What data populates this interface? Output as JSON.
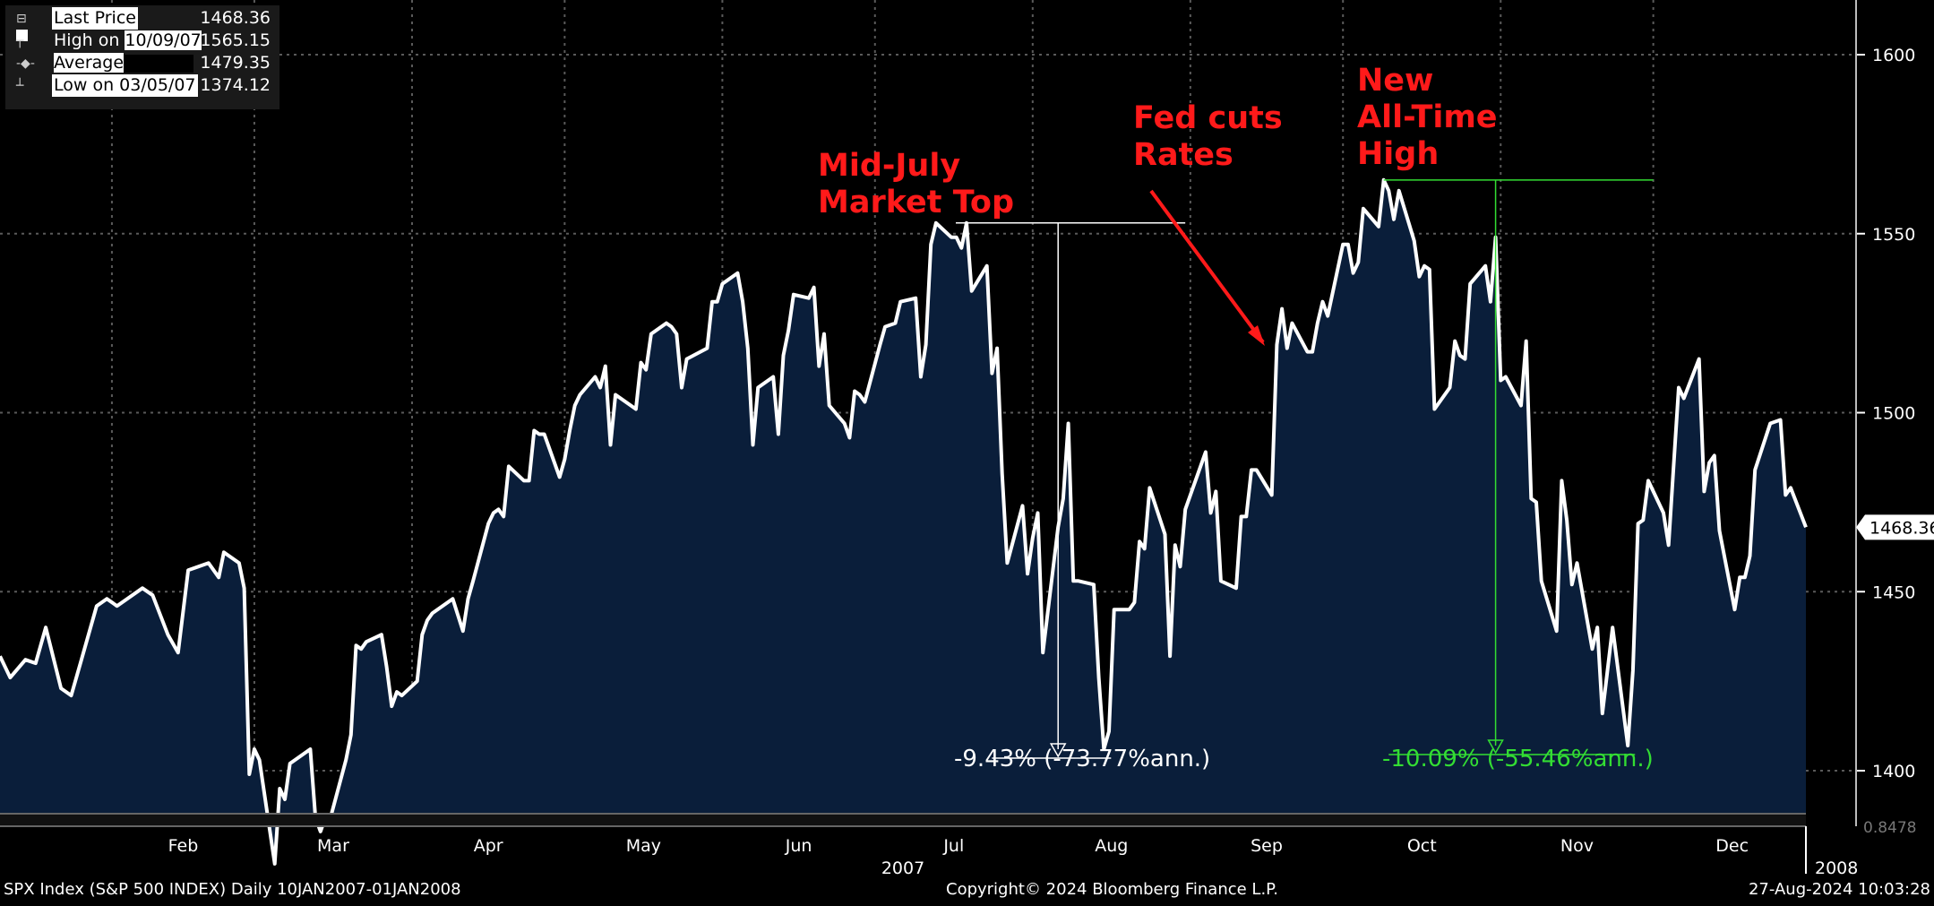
{
  "legend": {
    "last_price_label": "Last Price",
    "last_price_value": "1468.36",
    "high_label_prefix": "High on",
    "high_label_date": "10/09/07",
    "high_value": "1565.15",
    "average_label": "Average",
    "average_value": "1479.35",
    "low_label": "Low on 03/05/07",
    "low_value": "1374.12"
  },
  "annotations": {
    "mid_july_line1": "Mid-July",
    "mid_july_line2": "Market Top",
    "fed_line1": "Fed cuts",
    "fed_line2": "Rates",
    "ath_line1": "New",
    "ath_line2": "All-Time",
    "ath_line3": "High"
  },
  "measurements": {
    "first": "-9.43% (-73.77%ann.)",
    "second": "-10.09% (-55.46%ann.)"
  },
  "last_price_tag": "1468.36",
  "lower_panel_tag": "0.8478",
  "footer": {
    "left": "SPX Index (S&P 500 INDEX)  Daily 10JAN2007-01JAN2008",
    "center": "Copyright© 2024 Bloomberg Finance L.P.",
    "right": "27-Aug-2024 10:03:28"
  },
  "colors": {
    "line": "#ffffff",
    "area": "#0a1e3a",
    "grid": "#5a5a5a",
    "annotation": "#ff1a1a",
    "measure_green": "#33dd33",
    "background": "#000000"
  },
  "chart_data": {
    "type": "area",
    "title": "SPX Index (S&P 500 INDEX) Daily 10JAN2007-01JAN2008",
    "xlabel": "",
    "ylabel": "",
    "ylim": [
      1385,
      1620
    ],
    "yticks": [
      1400,
      1450,
      1500,
      1550,
      1600
    ],
    "year_labels": [
      "2007",
      "2008"
    ],
    "months": [
      "Feb",
      "Mar",
      "Apr",
      "May",
      "Jun",
      "Jul",
      "Aug",
      "Sep",
      "Oct",
      "Nov",
      "Dec"
    ],
    "x_start": "2007-01-10",
    "x_end": "2008-01-01",
    "series": [
      {
        "name": "Last Price",
        "points": [
          [
            "2007-01-10",
            1432
          ],
          [
            "2007-01-12",
            1426
          ],
          [
            "2007-01-15",
            1431
          ],
          [
            "2007-01-17",
            1430
          ],
          [
            "2007-01-19",
            1440
          ],
          [
            "2007-01-22",
            1423
          ],
          [
            "2007-01-24",
            1421
          ],
          [
            "2007-01-26",
            1431
          ],
          [
            "2007-01-29",
            1446
          ],
          [
            "2007-01-31",
            1448
          ],
          [
            "2007-02-02",
            1446
          ],
          [
            "2007-02-05",
            1449
          ],
          [
            "2007-02-07",
            1451
          ],
          [
            "2007-02-09",
            1449
          ],
          [
            "2007-02-12",
            1438
          ],
          [
            "2007-02-14",
            1433
          ],
          [
            "2007-02-16",
            1456
          ],
          [
            "2007-02-20",
            1458
          ],
          [
            "2007-02-22",
            1454
          ],
          [
            "2007-02-23",
            1461
          ],
          [
            "2007-02-26",
            1458
          ],
          [
            "2007-02-27",
            1451
          ],
          [
            "2007-02-28",
            1399
          ],
          [
            "2007-03-01",
            1406
          ],
          [
            "2007-03-02",
            1403
          ],
          [
            "2007-03-05",
            1374
          ],
          [
            "2007-03-06",
            1395
          ],
          [
            "2007-03-07",
            1392
          ],
          [
            "2007-03-08",
            1402
          ],
          [
            "2007-03-09",
            1403
          ],
          [
            "2007-03-12",
            1406
          ],
          [
            "2007-03-13",
            1387
          ],
          [
            "2007-03-14",
            1383
          ],
          [
            "2007-03-15",
            1387
          ],
          [
            "2007-03-16",
            1387
          ],
          [
            "2007-03-19",
            1403
          ],
          [
            "2007-03-20",
            1410
          ],
          [
            "2007-03-21",
            1435
          ],
          [
            "2007-03-22",
            1434
          ],
          [
            "2007-03-23",
            1436
          ],
          [
            "2007-03-26",
            1438
          ],
          [
            "2007-03-27",
            1429
          ],
          [
            "2007-03-28",
            1418
          ],
          [
            "2007-03-29",
            1422
          ],
          [
            "2007-03-30",
            1421
          ],
          [
            "2007-04-02",
            1425
          ],
          [
            "2007-04-03",
            1438
          ],
          [
            "2007-04-04",
            1442
          ],
          [
            "2007-04-05",
            1444
          ],
          [
            "2007-04-09",
            1448
          ],
          [
            "2007-04-11",
            1439
          ],
          [
            "2007-04-12",
            1448
          ],
          [
            "2007-04-13",
            1453
          ],
          [
            "2007-04-16",
            1469
          ],
          [
            "2007-04-17",
            1472
          ],
          [
            "2007-04-18",
            1473
          ],
          [
            "2007-04-19",
            1471
          ],
          [
            "2007-04-20",
            1485
          ],
          [
            "2007-04-23",
            1481
          ],
          [
            "2007-04-24",
            1481
          ],
          [
            "2007-04-25",
            1495
          ],
          [
            "2007-04-26",
            1494
          ],
          [
            "2007-04-27",
            1494
          ],
          [
            "2007-04-30",
            1482
          ],
          [
            "2007-05-01",
            1487
          ],
          [
            "2007-05-02",
            1495
          ],
          [
            "2007-05-03",
            1502
          ],
          [
            "2007-05-04",
            1505
          ],
          [
            "2007-05-07",
            1510
          ],
          [
            "2007-05-08",
            1507
          ],
          [
            "2007-05-09",
            1513
          ],
          [
            "2007-05-10",
            1491
          ],
          [
            "2007-05-11",
            1505
          ],
          [
            "2007-05-14",
            1502
          ],
          [
            "2007-05-15",
            1501
          ],
          [
            "2007-05-16",
            1514
          ],
          [
            "2007-05-17",
            1512
          ],
          [
            "2007-05-18",
            1522
          ],
          [
            "2007-05-21",
            1525
          ],
          [
            "2007-05-22",
            1524
          ],
          [
            "2007-05-23",
            1522
          ],
          [
            "2007-05-24",
            1507
          ],
          [
            "2007-05-25",
            1515
          ],
          [
            "2007-05-29",
            1518
          ],
          [
            "2007-05-30",
            1531
          ],
          [
            "2007-05-31",
            1531
          ],
          [
            "2007-06-01",
            1536
          ],
          [
            "2007-06-04",
            1539
          ],
          [
            "2007-06-05",
            1531
          ],
          [
            "2007-06-06",
            1518
          ],
          [
            "2007-06-07",
            1491
          ],
          [
            "2007-06-08",
            1507
          ],
          [
            "2007-06-11",
            1510
          ],
          [
            "2007-06-12",
            1494
          ],
          [
            "2007-06-13",
            1516
          ],
          [
            "2007-06-14",
            1523
          ],
          [
            "2007-06-15",
            1533
          ],
          [
            "2007-06-18",
            1532
          ],
          [
            "2007-06-19",
            1535
          ],
          [
            "2007-06-20",
            1513
          ],
          [
            "2007-06-21",
            1522
          ],
          [
            "2007-06-22",
            1502
          ],
          [
            "2007-06-25",
            1497
          ],
          [
            "2007-06-26",
            1493
          ],
          [
            "2007-06-27",
            1506
          ],
          [
            "2007-06-28",
            1505
          ],
          [
            "2007-06-29",
            1503
          ],
          [
            "2007-07-02",
            1519
          ],
          [
            "2007-07-03",
            1524
          ],
          [
            "2007-07-05",
            1525
          ],
          [
            "2007-07-06",
            1531
          ],
          [
            "2007-07-09",
            1532
          ],
          [
            "2007-07-10",
            1510
          ],
          [
            "2007-07-11",
            1519
          ],
          [
            "2007-07-12",
            1547
          ],
          [
            "2007-07-13",
            1553
          ],
          [
            "2007-07-16",
            1549
          ],
          [
            "2007-07-17",
            1549
          ],
          [
            "2007-07-18",
            1546
          ],
          [
            "2007-07-19",
            1553
          ],
          [
            "2007-07-20",
            1534
          ],
          [
            "2007-07-23",
            1541
          ],
          [
            "2007-07-24",
            1511
          ],
          [
            "2007-07-25",
            1518
          ],
          [
            "2007-07-26",
            1483
          ],
          [
            "2007-07-27",
            1458
          ],
          [
            "2007-07-30",
            1474
          ],
          [
            "2007-07-31",
            1455
          ],
          [
            "2007-08-01",
            1465
          ],
          [
            "2007-08-02",
            1472
          ],
          [
            "2007-08-03",
            1433
          ],
          [
            "2007-08-06",
            1468
          ],
          [
            "2007-08-07",
            1476
          ],
          [
            "2007-08-08",
            1497
          ],
          [
            "2007-08-09",
            1453
          ],
          [
            "2007-08-10",
            1453
          ],
          [
            "2007-08-13",
            1452
          ],
          [
            "2007-08-14",
            1426
          ],
          [
            "2007-08-15",
            1406
          ],
          [
            "2007-08-16",
            1411
          ],
          [
            "2007-08-17",
            1445
          ],
          [
            "2007-08-20",
            1445
          ],
          [
            "2007-08-21",
            1447
          ],
          [
            "2007-08-22",
            1464
          ],
          [
            "2007-08-23",
            1462
          ],
          [
            "2007-08-24",
            1479
          ],
          [
            "2007-08-27",
            1466
          ],
          [
            "2007-08-28",
            1432
          ],
          [
            "2007-08-29",
            1463
          ],
          [
            "2007-08-30",
            1457
          ],
          [
            "2007-08-31",
            1473
          ],
          [
            "2007-09-04",
            1489
          ],
          [
            "2007-09-05",
            1472
          ],
          [
            "2007-09-06",
            1478
          ],
          [
            "2007-09-07",
            1453
          ],
          [
            "2007-09-10",
            1451
          ],
          [
            "2007-09-11",
            1471
          ],
          [
            "2007-09-12",
            1471
          ],
          [
            "2007-09-13",
            1484
          ],
          [
            "2007-09-14",
            1484
          ],
          [
            "2007-09-17",
            1477
          ],
          [
            "2007-09-18",
            1519
          ],
          [
            "2007-09-19",
            1529
          ],
          [
            "2007-09-20",
            1518
          ],
          [
            "2007-09-21",
            1525
          ],
          [
            "2007-09-24",
            1517
          ],
          [
            "2007-09-25",
            1517
          ],
          [
            "2007-09-26",
            1525
          ],
          [
            "2007-09-27",
            1531
          ],
          [
            "2007-09-28",
            1527
          ],
          [
            "2007-10-01",
            1547
          ],
          [
            "2007-10-02",
            1547
          ],
          [
            "2007-10-03",
            1539
          ],
          [
            "2007-10-04",
            1542
          ],
          [
            "2007-10-05",
            1557
          ],
          [
            "2007-10-08",
            1552
          ],
          [
            "2007-10-09",
            1565
          ],
          [
            "2007-10-10",
            1562
          ],
          [
            "2007-10-11",
            1554
          ],
          [
            "2007-10-12",
            1562
          ],
          [
            "2007-10-15",
            1548
          ],
          [
            "2007-10-16",
            1538
          ],
          [
            "2007-10-17",
            1541
          ],
          [
            "2007-10-18",
            1540
          ],
          [
            "2007-10-19",
            1501
          ],
          [
            "2007-10-22",
            1507
          ],
          [
            "2007-10-23",
            1520
          ],
          [
            "2007-10-24",
            1516
          ],
          [
            "2007-10-25",
            1515
          ],
          [
            "2007-10-26",
            1536
          ],
          [
            "2007-10-29",
            1541
          ],
          [
            "2007-10-30",
            1531
          ],
          [
            "2007-10-31",
            1549
          ],
          [
            "2007-11-01",
            1509
          ],
          [
            "2007-11-02",
            1510
          ],
          [
            "2007-11-05",
            1502
          ],
          [
            "2007-11-06",
            1520
          ],
          [
            "2007-11-07",
            1476
          ],
          [
            "2007-11-08",
            1475
          ],
          [
            "2007-11-09",
            1453
          ],
          [
            "2007-11-12",
            1439
          ],
          [
            "2007-11-13",
            1481
          ],
          [
            "2007-11-14",
            1470
          ],
          [
            "2007-11-15",
            1452
          ],
          [
            "2007-11-16",
            1458
          ],
          [
            "2007-11-19",
            1434
          ],
          [
            "2007-11-20",
            1440
          ],
          [
            "2007-11-21",
            1416
          ],
          [
            "2007-11-23",
            1440
          ],
          [
            "2007-11-26",
            1407
          ],
          [
            "2007-11-27",
            1428
          ],
          [
            "2007-11-28",
            1469
          ],
          [
            "2007-11-29",
            1470
          ],
          [
            "2007-11-30",
            1481
          ],
          [
            "2007-12-03",
            1472
          ],
          [
            "2007-12-04",
            1463
          ],
          [
            "2007-12-05",
            1485
          ],
          [
            "2007-12-06",
            1507
          ],
          [
            "2007-12-07",
            1504
          ],
          [
            "2007-12-10",
            1515
          ],
          [
            "2007-12-11",
            1478
          ],
          [
            "2007-12-12",
            1486
          ],
          [
            "2007-12-13",
            1488
          ],
          [
            "2007-12-14",
            1467
          ],
          [
            "2007-12-17",
            1445
          ],
          [
            "2007-12-18",
            1454
          ],
          [
            "2007-12-19",
            1454
          ],
          [
            "2007-12-20",
            1460
          ],
          [
            "2007-12-21",
            1484
          ],
          [
            "2007-12-24",
            1497
          ],
          [
            "2007-12-26",
            1498
          ],
          [
            "2007-12-27",
            1477
          ],
          [
            "2007-12-28",
            1479
          ],
          [
            "2007-12-31",
            1468
          ]
        ]
      }
    ],
    "reference_lines": [
      {
        "from": "2007-07-19",
        "from_value": 1553,
        "to": "2007-08-15",
        "to_value": 1406,
        "label": "-9.43% (-73.77%ann.)"
      },
      {
        "from": "2007-10-09",
        "from_value": 1565,
        "to": "2007-11-26",
        "to_value": 1407,
        "label": "-10.09% (-55.46%ann.)"
      }
    ]
  }
}
